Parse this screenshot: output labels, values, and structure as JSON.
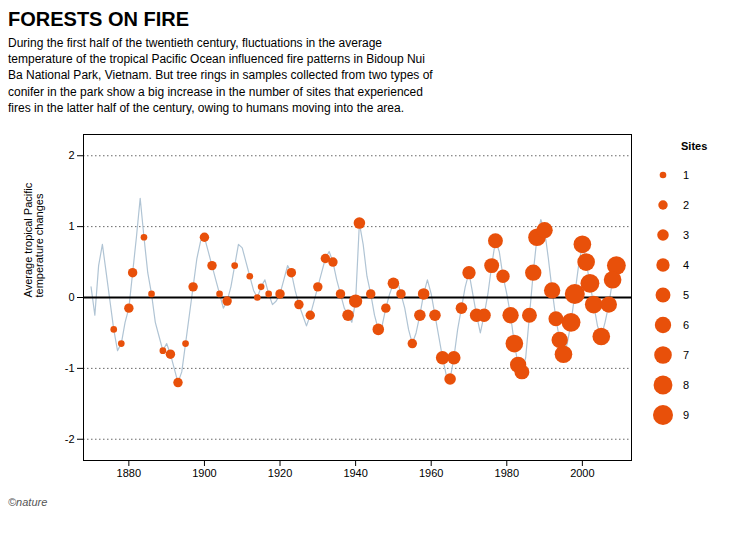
{
  "chart_data": {
    "type": "line",
    "title": "FORESTS ON FIRE",
    "subtitle": "During the first half of the twentieth century, fluctuations in the average\ntemperature of the tropical Pacific Ocean influenced fire patterns in Bidoup Nui\nBa National Park, Vietnam. But tree rings in samples collected from two types of\nconifer in the park show a big increase in the number of sites that experienced\nfires in the latter half of the century, owing to humans moving into the area.",
    "ylabel": "Average tropical Pacific\ntemperature changes",
    "xlim": [
      1868,
      2013
    ],
    "ylim": [
      -2.3,
      2.3
    ],
    "xticks": [
      1880,
      1900,
      1920,
      1940,
      1960,
      1980,
      2000
    ],
    "yticks": [
      -2,
      -1,
      0,
      1,
      2
    ],
    "grid": true,
    "x": [
      1870,
      1871,
      1872,
      1873,
      1874,
      1875,
      1876,
      1877,
      1878,
      1879,
      1880,
      1881,
      1882,
      1883,
      1884,
      1885,
      1886,
      1887,
      1888,
      1889,
      1890,
      1891,
      1892,
      1893,
      1894,
      1895,
      1896,
      1897,
      1898,
      1899,
      1900,
      1901,
      1902,
      1903,
      1904,
      1905,
      1906,
      1907,
      1908,
      1909,
      1910,
      1911,
      1912,
      1913,
      1914,
      1915,
      1916,
      1917,
      1918,
      1919,
      1920,
      1921,
      1922,
      1923,
      1924,
      1925,
      1926,
      1927,
      1928,
      1929,
      1930,
      1931,
      1932,
      1933,
      1934,
      1935,
      1936,
      1937,
      1938,
      1939,
      1940,
      1941,
      1942,
      1943,
      1944,
      1945,
      1946,
      1947,
      1948,
      1949,
      1950,
      1951,
      1952,
      1953,
      1954,
      1955,
      1956,
      1957,
      1958,
      1959,
      1960,
      1961,
      1962,
      1963,
      1964,
      1965,
      1966,
      1967,
      1968,
      1969,
      1970,
      1971,
      1972,
      1973,
      1974,
      1975,
      1976,
      1977,
      1978,
      1979,
      1980,
      1981,
      1982,
      1983,
      1984,
      1985,
      1986,
      1987,
      1988,
      1989,
      1990,
      1991,
      1992,
      1993,
      1994,
      1995,
      1996,
      1997,
      1998,
      1999,
      2000,
      2001,
      2002,
      2003,
      2004,
      2005,
      2006,
      2007,
      2008,
      2009
    ],
    "series": [
      {
        "type": "line",
        "color": "#b0c4d4",
        "values": [
          0.15,
          -0.25,
          0.45,
          0.75,
          0.35,
          -0.05,
          -0.45,
          -0.75,
          -0.65,
          -0.35,
          -0.15,
          0.35,
          0.85,
          1.4,
          0.85,
          0.35,
          0.05,
          -0.35,
          -0.55,
          -0.75,
          -0.65,
          -0.8,
          -1.0,
          -1.2,
          -1.05,
          -0.65,
          -0.25,
          0.15,
          0.55,
          0.8,
          0.85,
          0.65,
          0.45,
          0.25,
          0.05,
          -0.15,
          -0.05,
          0.15,
          0.45,
          0.75,
          0.7,
          0.5,
          0.3,
          0.1,
          0.0,
          0.15,
          0.25,
          0.05,
          -0.1,
          -0.05,
          0.05,
          0.25,
          0.45,
          0.35,
          0.1,
          -0.1,
          -0.25,
          -0.4,
          -0.25,
          -0.05,
          0.15,
          0.35,
          0.55,
          0.65,
          0.5,
          0.25,
          0.05,
          -0.15,
          -0.25,
          -0.35,
          -0.05,
          1.05,
          0.75,
          0.3,
          0.05,
          -0.25,
          -0.45,
          -0.4,
          -0.15,
          0.05,
          0.2,
          0.25,
          0.05,
          -0.15,
          -0.45,
          -0.65,
          -0.5,
          -0.25,
          0.05,
          0.25,
          0.05,
          -0.25,
          -0.55,
          -0.85,
          -1.1,
          -1.15,
          -0.85,
          -0.45,
          -0.15,
          0.15,
          0.35,
          0.05,
          -0.25,
          -0.5,
          -0.25,
          0.05,
          0.45,
          0.8,
          0.65,
          0.3,
          0.05,
          -0.25,
          -0.65,
          -0.95,
          -1.05,
          -0.85,
          -0.25,
          0.35,
          0.85,
          1.1,
          0.95,
          0.55,
          0.1,
          -0.3,
          -0.6,
          -0.8,
          -0.65,
          -0.35,
          0.05,
          0.45,
          0.75,
          0.5,
          0.2,
          -0.1,
          -0.4,
          -0.55,
          -0.35,
          -0.1,
          0.25,
          0.45
        ]
      },
      {
        "type": "scatter",
        "color": "#E8500A",
        "x": [
          1876,
          1878,
          1880,
          1881,
          1884,
          1886,
          1889,
          1891,
          1893,
          1895,
          1897,
          1900,
          1902,
          1904,
          1906,
          1908,
          1912,
          1914,
          1915,
          1917,
          1920,
          1923,
          1925,
          1928,
          1930,
          1932,
          1934,
          1936,
          1938,
          1940,
          1941,
          1944,
          1946,
          1948,
          1950,
          1952,
          1955,
          1957,
          1958,
          1961,
          1963,
          1965,
          1966,
          1968,
          1970,
          1972,
          1974,
          1976,
          1977,
          1979,
          1981,
          1982,
          1983,
          1984,
          1986,
          1987,
          1988,
          1990,
          1992,
          1993,
          1994,
          1995,
          1997,
          1998,
          2000,
          2001,
          2002,
          2003,
          2005,
          2007,
          2008,
          2009
        ],
        "values": [
          -0.45,
          -0.65,
          -0.15,
          0.35,
          0.85,
          0.05,
          -0.75,
          -0.8,
          -1.2,
          -0.65,
          0.15,
          0.85,
          0.45,
          0.05,
          -0.05,
          0.45,
          0.3,
          0.0,
          0.15,
          0.05,
          0.05,
          0.35,
          -0.1,
          -0.25,
          0.15,
          0.55,
          0.5,
          0.05,
          -0.25,
          -0.05,
          1.05,
          0.05,
          -0.45,
          -0.15,
          0.2,
          0.05,
          -0.65,
          -0.25,
          0.05,
          -0.25,
          -0.85,
          -1.15,
          -0.85,
          -0.15,
          0.35,
          -0.25,
          -0.25,
          0.45,
          0.8,
          0.3,
          -0.25,
          -0.65,
          -0.95,
          -1.05,
          -0.25,
          0.35,
          0.85,
          0.95,
          0.1,
          -0.3,
          -0.6,
          -0.8,
          -0.35,
          0.05,
          0.75,
          0.5,
          0.2,
          -0.1,
          -0.55,
          -0.1,
          0.25,
          0.45
        ],
        "sites": [
          1,
          1,
          2,
          2,
          1,
          1,
          1,
          2,
          2,
          1,
          2,
          2,
          2,
          1,
          2,
          1,
          1,
          1,
          1,
          1,
          2,
          2,
          2,
          2,
          2,
          2,
          2,
          2,
          3,
          4,
          3,
          2,
          3,
          2,
          3,
          2,
          2,
          3,
          3,
          3,
          4,
          3,
          4,
          3,
          4,
          4,
          4,
          5,
          5,
          4,
          6,
          7,
          6,
          5,
          5,
          6,
          7,
          6,
          6,
          5,
          6,
          7,
          8,
          9,
          7,
          7,
          8,
          7,
          7,
          6,
          7,
          8
        ]
      }
    ],
    "legend_title": "Sites",
    "legend_sizes": [
      1,
      2,
      3,
      4,
      5,
      6,
      7,
      8,
      9
    ],
    "annotations": [
      "©nature"
    ]
  }
}
